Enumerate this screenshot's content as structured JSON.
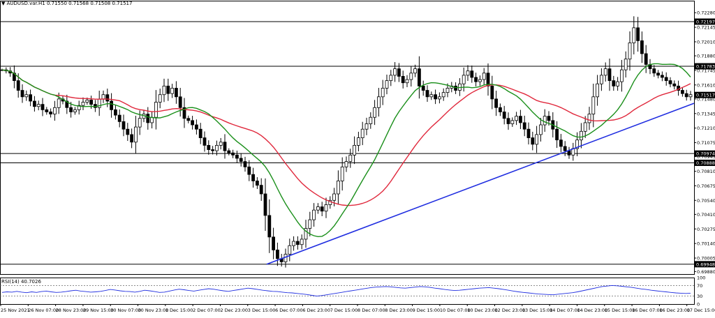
{
  "header": {
    "menu_arrow": "▼",
    "symbol": "AUDUSD.var.H1",
    "ohlc": "0.71550 0.71568 0.71508 0.71517"
  },
  "rsi": {
    "title": "RSI(14) 40.7026",
    "levels": [
      "100",
      "70",
      "30",
      "0"
    ],
    "level_values": [
      100,
      70,
      30,
      0
    ],
    "series": [
      44,
      46,
      45,
      48,
      45,
      43,
      46,
      44,
      47,
      49,
      46,
      44,
      45,
      47,
      50,
      52,
      49,
      47,
      45,
      46,
      48,
      51,
      55,
      53,
      50,
      48,
      47,
      45,
      48,
      52,
      50,
      47,
      44,
      45,
      49,
      53,
      56,
      54,
      51,
      49,
      52,
      55,
      58,
      56,
      53,
      50,
      48,
      51,
      54,
      57,
      60,
      58,
      55,
      52,
      50,
      48,
      47,
      45,
      43,
      42,
      40,
      38,
      36,
      33,
      30,
      32,
      35,
      38,
      41,
      44,
      47,
      50,
      53,
      56,
      59,
      62,
      64,
      65,
      66,
      65,
      63,
      61,
      60,
      62,
      64,
      66,
      65,
      63,
      60,
      58,
      55,
      53,
      51,
      52,
      54,
      56,
      58,
      60,
      61,
      62,
      60,
      58,
      55,
      52,
      49,
      46,
      44,
      42,
      40,
      38,
      37,
      36,
      35,
      37,
      39,
      41,
      43,
      46,
      50,
      54,
      58,
      62,
      66,
      68,
      70,
      69,
      67,
      65,
      63,
      60,
      57,
      55,
      52,
      50,
      48,
      46,
      44,
      42,
      41,
      40,
      41
    ]
  },
  "price_axis": {
    "ticks": [
      "0.72280",
      "0.72145",
      "0.72010",
      "0.71880",
      "0.71745",
      "0.71610",
      "0.71480",
      "0.71345",
      "0.71210",
      "0.71075",
      "0.70945",
      "0.70810",
      "0.70675",
      "0.70540",
      "0.70410",
      "0.70275",
      "0.70140",
      "0.70005",
      "0.69880"
    ],
    "tick_values": [
      0.7228,
      0.72145,
      0.7201,
      0.7188,
      0.71745,
      0.7161,
      0.7148,
      0.71345,
      0.7121,
      0.71075,
      0.70945,
      0.7081,
      0.70675,
      0.7054,
      0.7041,
      0.70275,
      0.7014,
      0.70005,
      0.6988
    ],
    "tags": [
      {
        "label": "0.72197",
        "value": 0.72197,
        "bg": "#000000"
      },
      {
        "label": "0.71783",
        "value": 0.71783,
        "bg": "#000000"
      },
      {
        "label": "0.71517",
        "value": 0.71517,
        "bg": "#000000"
      },
      {
        "label": "0.70974",
        "value": 0.70974,
        "bg": "#000000"
      },
      {
        "label": "0.70888",
        "value": 0.70888,
        "bg": "#000000"
      },
      {
        "label": "0.69948",
        "value": 0.69948,
        "bg": "#000000"
      }
    ]
  },
  "time_axis": {
    "labels": [
      "25 Nov 2021",
      "26 Nov 07:00",
      "28 Nov 23:00",
      "29 Nov 15:00",
      "30 Nov 07:00",
      "30 Nov 23:00",
      "1 Dec 15:00",
      "2 Dec 07:00",
      "2 Dec 23:00",
      "3 Dec 15:00",
      "6 Dec 07:00",
      "6 Dec 23:00",
      "7 Dec 15:00",
      "8 Dec 07:00",
      "8 Dec 23:00",
      "9 Dec 15:00",
      "10 Dec 07:00",
      "10 Dec 23:00",
      "12 Dec 23:00",
      "13 Dec 15:00",
      "14 Dec 07:00",
      "14 Dec 23:00",
      "15 Dec 15:00",
      "16 Dec 07:00",
      "16 Dec 23:00",
      "17 Dec 15:00"
    ]
  },
  "chart_data": {
    "type": "candlestick",
    "symbol": "AUDUSD.var.H1",
    "ylim": [
      0.6985,
      0.7232
    ],
    "horizontal_levels": [
      0.72197,
      0.71783,
      0.70974,
      0.70888,
      0.69948
    ],
    "trendline": {
      "from": [
        0,
        0.69948
      ],
      "to": [
        1,
        0.7144
      ]
    },
    "colors": {
      "ma_fast": "#1a8f1a",
      "ma_slow": "#e0283c",
      "trendline": "#1f2de0",
      "candle": "#000000",
      "level": "#000000"
    },
    "close": [
      0.7175,
      0.7174,
      0.7172,
      0.7165,
      0.7156,
      0.715,
      0.7152,
      0.7146,
      0.7141,
      0.7143,
      0.7138,
      0.7136,
      0.7134,
      0.714,
      0.7148,
      0.7146,
      0.714,
      0.7136,
      0.7138,
      0.7142,
      0.7145,
      0.7147,
      0.7143,
      0.714,
      0.7148,
      0.7152,
      0.7146,
      0.7138,
      0.7133,
      0.7127,
      0.712,
      0.7115,
      0.7108,
      0.7122,
      0.713,
      0.7134,
      0.7126,
      0.7131,
      0.7145,
      0.7152,
      0.716,
      0.7153,
      0.7158,
      0.715,
      0.714,
      0.713,
      0.7128,
      0.7124,
      0.712,
      0.7112,
      0.7105,
      0.7101,
      0.71,
      0.7105,
      0.7108,
      0.71,
      0.7098,
      0.7096,
      0.7093,
      0.709,
      0.7085,
      0.7078,
      0.7072,
      0.7068,
      0.706,
      0.704,
      0.702,
      0.7008,
      0.7,
      0.6997,
      0.7004,
      0.7012,
      0.7016,
      0.7013,
      0.7018,
      0.7028,
      0.7036,
      0.7045,
      0.7048,
      0.7044,
      0.705,
      0.7054,
      0.706,
      0.7072,
      0.7085,
      0.709,
      0.7096,
      0.7105,
      0.7112,
      0.712,
      0.7125,
      0.7131,
      0.714,
      0.715,
      0.7158,
      0.7165,
      0.717,
      0.7176,
      0.7169,
      0.7163,
      0.7166,
      0.7172,
      0.7176,
      0.716,
      0.7156,
      0.715,
      0.7152,
      0.7148,
      0.715,
      0.7154,
      0.7158,
      0.716,
      0.7156,
      0.7162,
      0.717,
      0.7174,
      0.7168,
      0.7164,
      0.7166,
      0.7172,
      0.716,
      0.7148,
      0.714,
      0.7136,
      0.713,
      0.7125,
      0.7128,
      0.7132,
      0.7126,
      0.712,
      0.7112,
      0.7106,
      0.7115,
      0.7124,
      0.7132,
      0.7128,
      0.712,
      0.711,
      0.7104,
      0.71,
      0.7096,
      0.7102,
      0.711,
      0.7118,
      0.7126,
      0.7134,
      0.715,
      0.7162,
      0.717,
      0.7176,
      0.7165,
      0.716,
      0.7164,
      0.7175,
      0.7185,
      0.72,
      0.7214,
      0.7202,
      0.719,
      0.718,
      0.7176,
      0.7172,
      0.717,
      0.7168,
      0.7165,
      0.7162,
      0.716,
      0.7156,
      0.7153,
      0.715,
      0.7152
    ]
  }
}
